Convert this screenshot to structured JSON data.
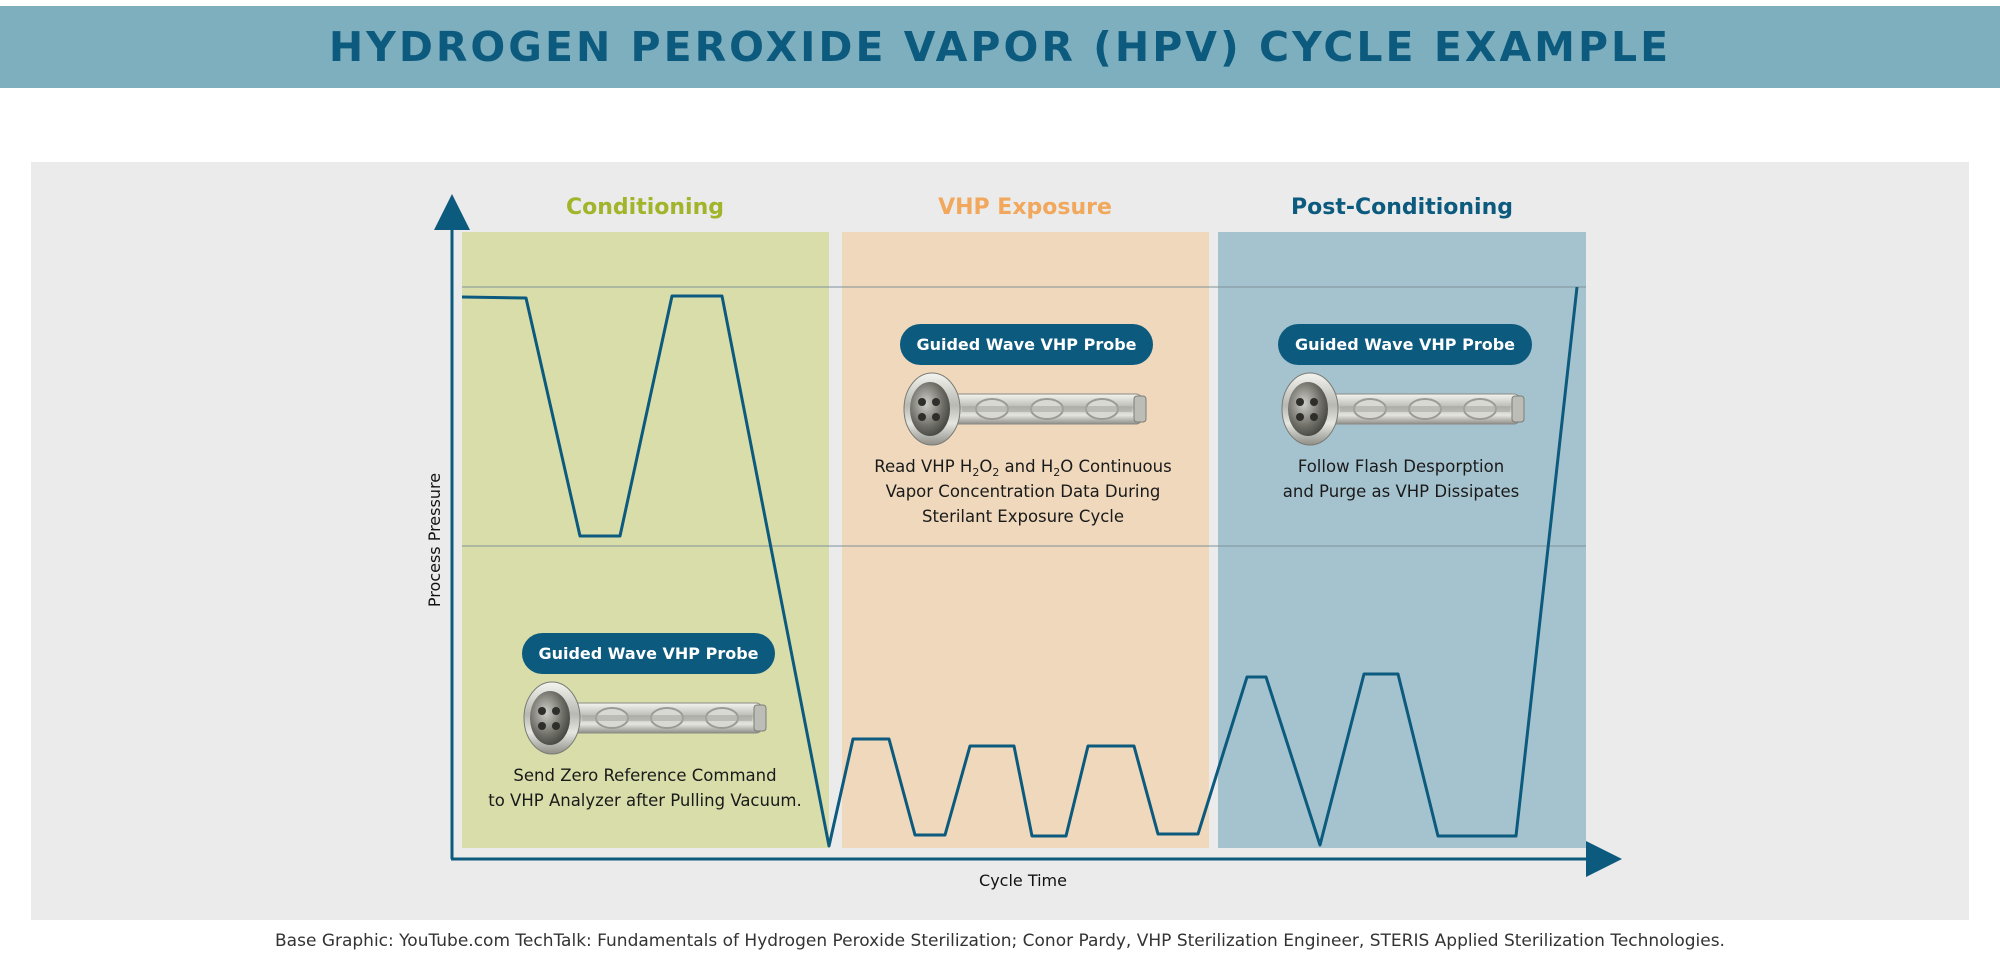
{
  "title": "HYDROGEN PEROXIDE VAPOR (HPV) CYCLE EXAMPLE",
  "colors": {
    "title_bg": "#7eafbf",
    "title_text": "#0c5a7d",
    "conditioning_bg": "#d8ddaa",
    "conditioning_text": "#a2b429",
    "exposure_bg": "#efd8bb",
    "exposure_text": "#f1a85c",
    "post_bg": "#a5c3ce",
    "post_text": "#0c5a7d",
    "line": "#0c5a7d",
    "pill": "#0c5a7d"
  },
  "phases": {
    "conditioning": "Conditioning",
    "exposure": "VHP Exposure",
    "post": "Post-Conditioning"
  },
  "axes": {
    "y_label": "Process Pressure",
    "x_label": "Cycle Time"
  },
  "probes": {
    "conditioning": {
      "label": "Guided Wave VHP Probe",
      "line1": "Send Zero Reference Command",
      "line2": "to VHP Analyzer after Pulling Vacuum."
    },
    "exposure": {
      "label": "Guided Wave VHP Probe",
      "line1_a": "Read VHP H",
      "line1_sub1": "2",
      "line1_b": "O",
      "line1_sub2": "2",
      "line1_c": " and H",
      "line1_sub3": "2",
      "line1_d": "O Continuous",
      "line2": "Vapor Concentration Data During",
      "line3": "Sterilant Exposure Cycle"
    },
    "post": {
      "label": "Guided Wave VHP Probe",
      "line1": "Follow Flash Desporption",
      "line2": "and Purge as VHP Dissipates"
    }
  },
  "footer": "Base Graphic: YouTube.com TechTalk: Fundamentals of Hydrogen Peroxide Sterilization; Conor Pardy, VHP Sterilization Engineer, STERIS Applied Sterilization Technologies."
}
